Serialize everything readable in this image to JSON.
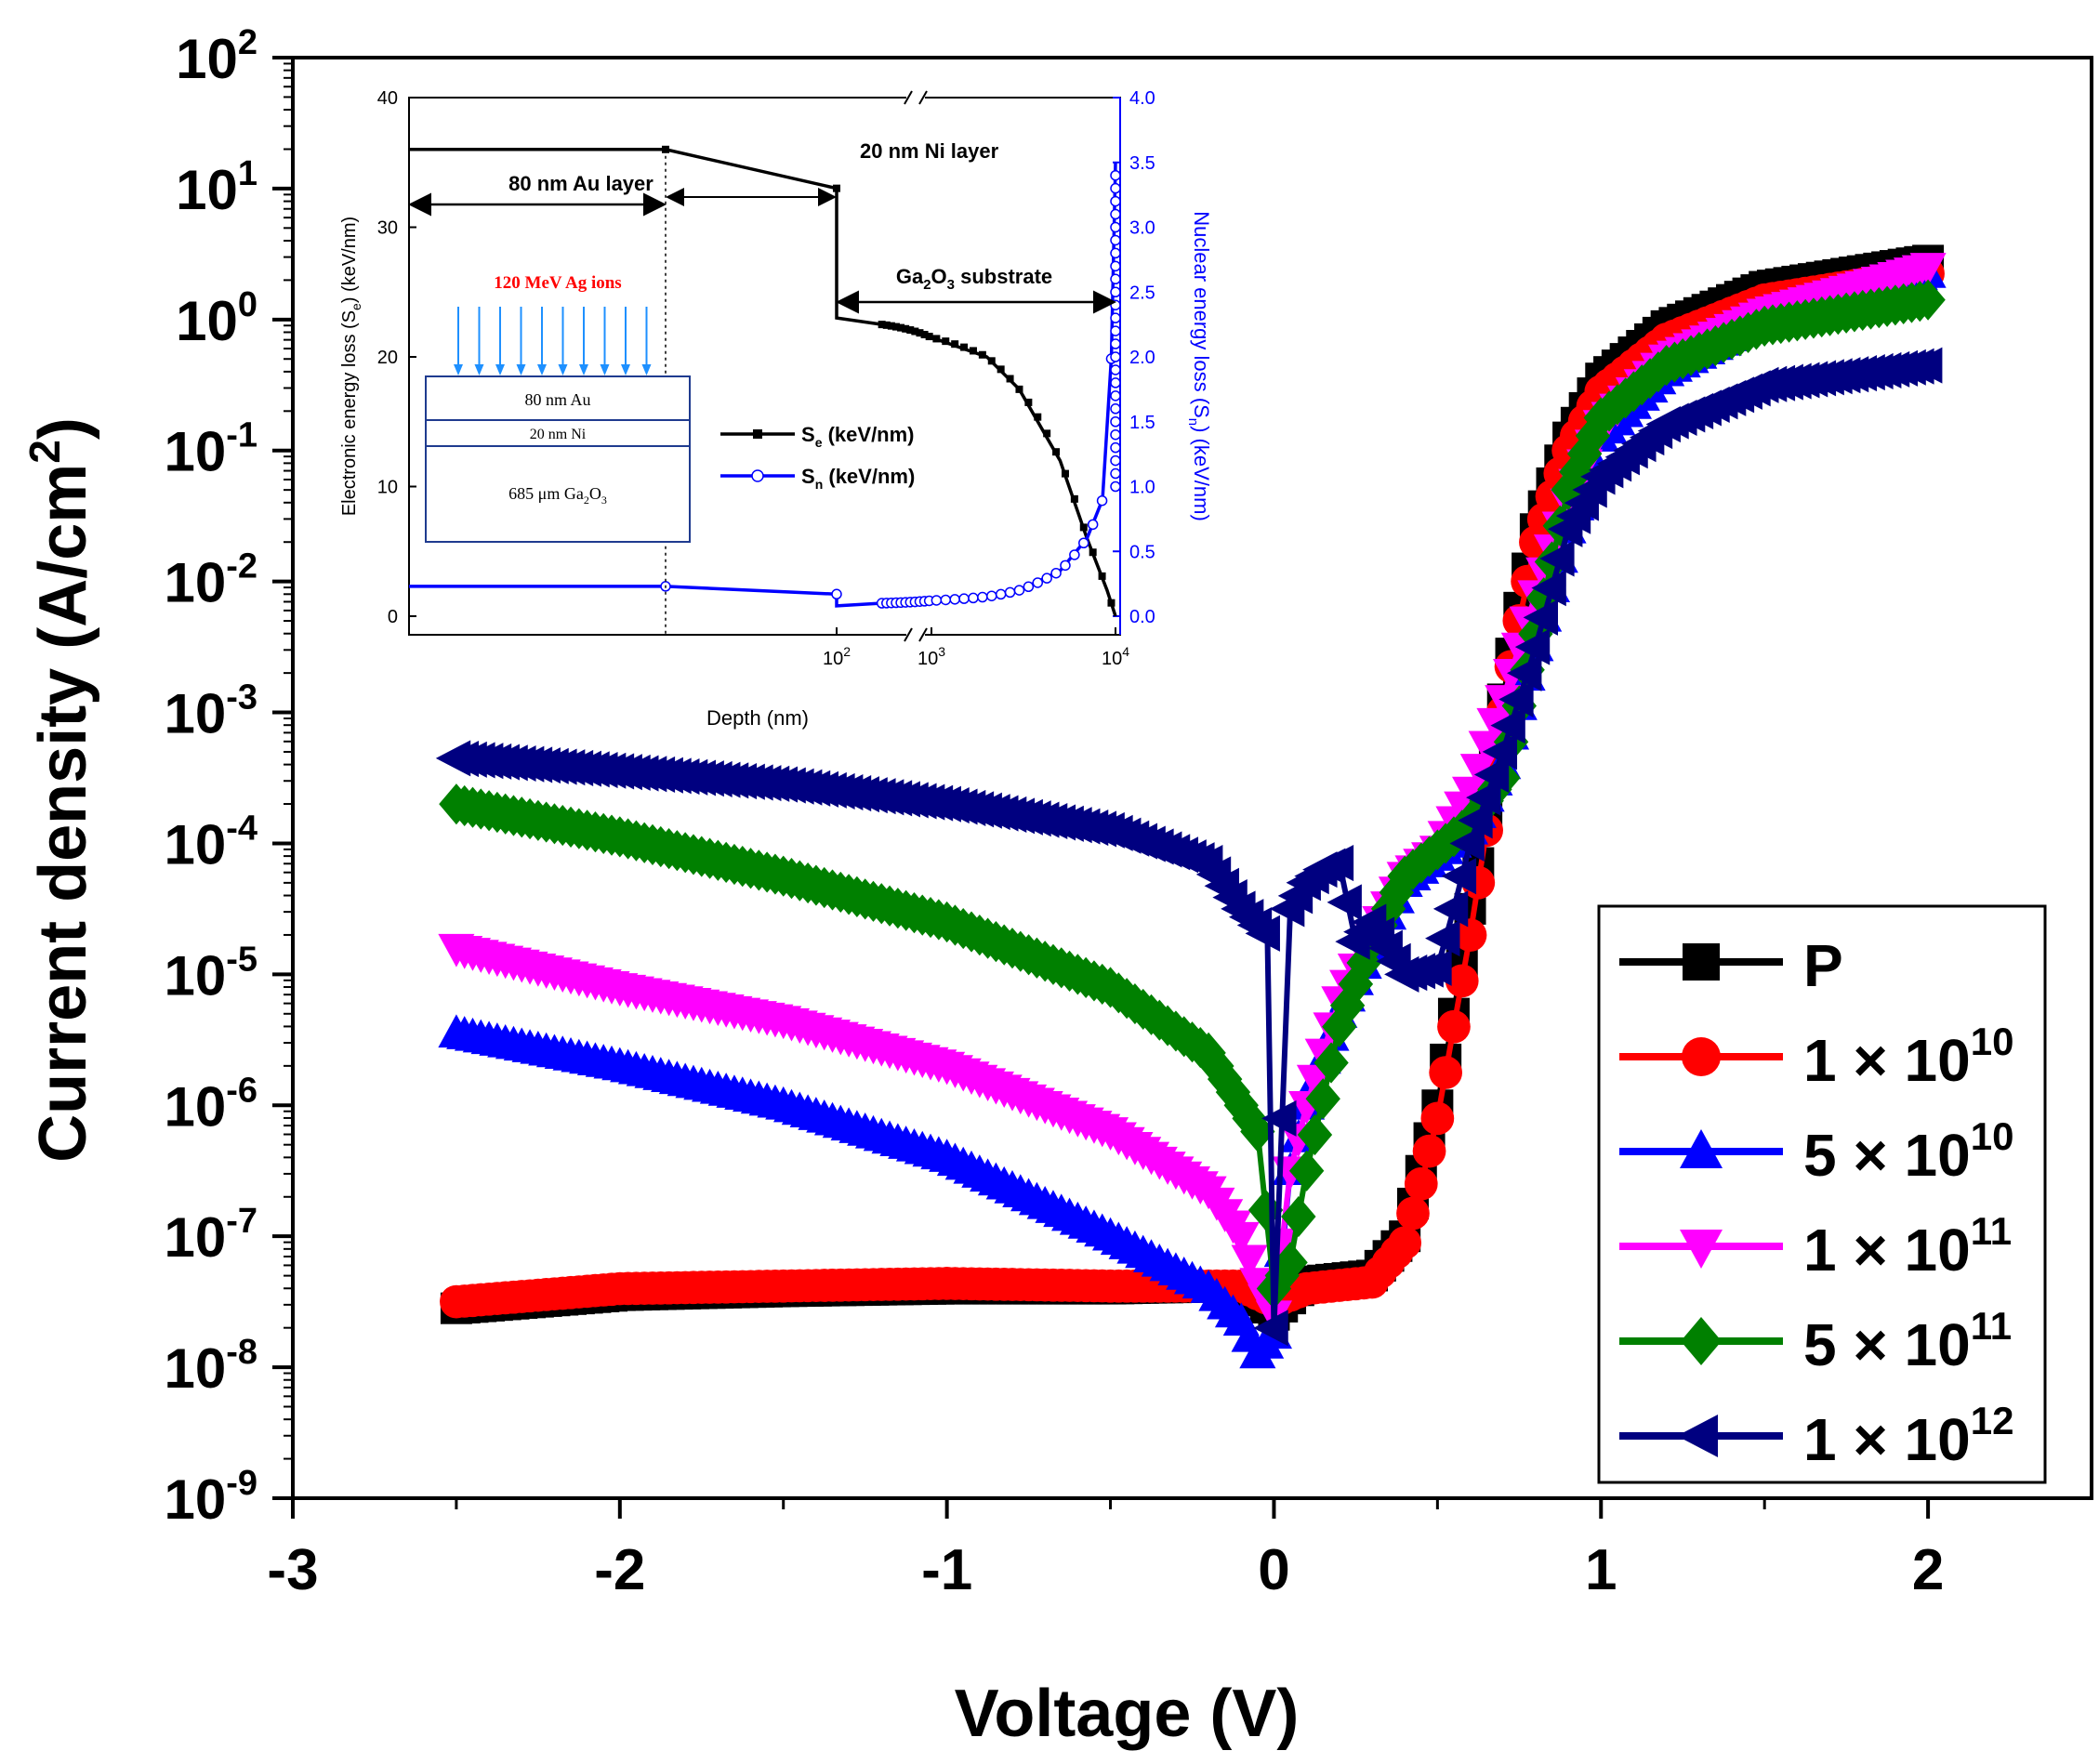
{
  "chart_data": [
    {
      "type": "line",
      "title": "",
      "xlabel": "Voltage (V)",
      "ylabel_main": "Current density (A/cm",
      "ylabel_sup": "2",
      "ylabel_end": ")",
      "yscale": "log",
      "xlim": [
        -3,
        2.5
      ],
      "ylim_exponents": [
        -9,
        2
      ],
      "x_ticks": [
        "-3",
        "-2",
        "-1",
        "0",
        "1",
        "2"
      ],
      "x_tick_values": [
        -3,
        -2,
        -1,
        0,
        1,
        2
      ],
      "y_tick_exponents": [
        "-9",
        "-8",
        "-7",
        "-6",
        "-5",
        "-4",
        "-3",
        "-2",
        "-1",
        "0",
        "1",
        "2"
      ],
      "y_tick_base": "10",
      "series": [
        {
          "name": "P",
          "name_base": "P",
          "name_exp": "",
          "color": "#000000",
          "marker": "square",
          "x": [
            -2.5,
            -2.0,
            -1.5,
            -1.0,
            -0.5,
            -0.1,
            0.0,
            0.1,
            0.3,
            0.4,
            0.45,
            0.5,
            0.55,
            0.6,
            0.65,
            0.7,
            0.75,
            0.8,
            0.9,
            1.0,
            1.2,
            1.5,
            2.0
          ],
          "logy": [
            -7.55,
            -7.45,
            -7.42,
            -7.4,
            -7.4,
            -7.38,
            -7.6,
            -7.35,
            -7.3,
            -7.0,
            -6.5,
            -6.0,
            -5.3,
            -4.5,
            -3.8,
            -2.9,
            -2.2,
            -1.6,
            -0.9,
            -0.45,
            -0.05,
            0.25,
            0.45
          ]
        },
        {
          "name": "1 × 10^10",
          "name_base": "1 × 10",
          "name_exp": "10",
          "color": "#ff0000",
          "marker": "circle",
          "x": [
            -2.5,
            -2.0,
            -1.5,
            -1.0,
            -0.5,
            -0.1,
            0.0,
            0.1,
            0.3,
            0.4,
            0.45,
            0.5,
            0.55,
            0.6,
            0.65,
            0.7,
            0.75,
            0.8,
            0.9,
            1.0,
            1.2,
            1.5,
            2.0
          ],
          "logy": [
            -7.5,
            -7.4,
            -7.38,
            -7.36,
            -7.38,
            -7.38,
            -7.5,
            -7.4,
            -7.35,
            -7.05,
            -6.6,
            -6.1,
            -5.4,
            -4.7,
            -3.9,
            -3.0,
            -2.3,
            -1.7,
            -1.0,
            -0.55,
            -0.15,
            0.15,
            0.35
          ]
        },
        {
          "name": "5 × 10^10",
          "name_base": "5 × 10",
          "name_exp": "10",
          "color": "#0000ff",
          "marker": "triangle-up",
          "x": [
            -2.5,
            -2.0,
            -1.5,
            -1.0,
            -0.5,
            -0.2,
            -0.1,
            -0.05,
            0.0,
            0.05,
            0.1,
            0.2,
            0.3,
            0.4,
            0.5,
            0.6,
            0.7,
            0.8,
            0.9,
            1.0,
            1.2,
            1.5,
            2.0
          ],
          "logy": [
            -5.45,
            -5.7,
            -6.0,
            -6.4,
            -7.0,
            -7.4,
            -7.65,
            -7.9,
            -7.75,
            -6.5,
            -6.0,
            -5.3,
            -4.8,
            -4.3,
            -4.1,
            -3.9,
            -3.4,
            -2.5,
            -1.6,
            -0.9,
            -0.4,
            0.0,
            0.35
          ]
        },
        {
          "name": "1 × 10^11",
          "name_base": "1 × 10",
          "name_exp": "11",
          "color": "#ff00ff",
          "marker": "triangle-down",
          "x": [
            -2.5,
            -2.0,
            -1.5,
            -1.0,
            -0.5,
            -0.2,
            -0.1,
            -0.05,
            0.0,
            0.05,
            0.1,
            0.2,
            0.3,
            0.4,
            0.5,
            0.6,
            0.7,
            0.75,
            0.8,
            0.9,
            1.0,
            1.2,
            1.5,
            2.0
          ],
          "logy": [
            -4.8,
            -5.1,
            -5.35,
            -5.7,
            -6.2,
            -6.65,
            -7.0,
            -7.35,
            -7.6,
            -6.5,
            -6.0,
            -5.2,
            -4.7,
            -4.25,
            -4.05,
            -3.6,
            -2.9,
            -2.5,
            -2.1,
            -1.4,
            -0.8,
            -0.3,
            0.05,
            0.4
          ]
        },
        {
          "name": "5 × 10^11",
          "name_base": "5 × 10",
          "name_exp": "11",
          "color": "#008000",
          "marker": "diamond",
          "x": [
            -2.5,
            -2.0,
            -1.5,
            -1.0,
            -0.5,
            -0.2,
            -0.05,
            0.0,
            0.05,
            0.1,
            0.2,
            0.3,
            0.4,
            0.5,
            0.6,
            0.7,
            0.8,
            0.9,
            1.0,
            1.2,
            1.5,
            2.0
          ],
          "logy": [
            -3.7,
            -3.95,
            -4.25,
            -4.6,
            -5.1,
            -5.6,
            -6.2,
            -7.4,
            -7.2,
            -6.5,
            -5.4,
            -4.75,
            -4.25,
            -4.05,
            -3.85,
            -3.5,
            -2.4,
            -1.3,
            -0.75,
            -0.35,
            -0.05,
            0.15
          ]
        },
        {
          "name": "1 × 10^12",
          "name_base": "1 × 10",
          "name_exp": "12",
          "color": "#000080",
          "marker": "triangle-left",
          "x": [
            -2.5,
            -2.0,
            -1.5,
            -1.0,
            -0.5,
            -0.2,
            -0.1,
            -0.02,
            0.0,
            0.05,
            0.1,
            0.15,
            0.2,
            0.25,
            0.3,
            0.4,
            0.5,
            0.55,
            0.6,
            0.7,
            0.8,
            0.9,
            1.0,
            1.2,
            1.5,
            2.0
          ],
          "logy": [
            -3.35,
            -3.45,
            -3.55,
            -3.7,
            -3.9,
            -4.15,
            -4.5,
            -4.7,
            -7.7,
            -4.5,
            -4.3,
            -4.2,
            -4.15,
            -4.75,
            -4.6,
            -5.0,
            -4.95,
            -4.5,
            -4.0,
            -3.3,
            -2.5,
            -1.6,
            -1.2,
            -0.8,
            -0.5,
            -0.35
          ]
        }
      ],
      "legend": "bottom-right"
    },
    {
      "type": "line",
      "inset": true,
      "xlabel": "Depth (nm)",
      "ylabel_left": "Electronic energy loss (S",
      "ylabel_left_sub": "e",
      "ylabel_left_end": ") (keV/nm)",
      "ylabel_right": "Nuclear energy loss (S",
      "ylabel_right_sub": "n",
      "ylabel_right_end": ") (keV/nm)",
      "y_left_ticks": [
        "0",
        "10",
        "20",
        "30",
        "40"
      ],
      "y_left_values": [
        0,
        10,
        20,
        30,
        40
      ],
      "y_right_ticks": [
        "0.0",
        "0.5",
        "1.0",
        "1.5",
        "2.0",
        "2.5",
        "3.0",
        "3.5",
        "4.0"
      ],
      "y_right_values": [
        0.0,
        0.5,
        1.0,
        1.5,
        2.0,
        2.5,
        3.0,
        3.5,
        4.0
      ],
      "x_tick_base": "10",
      "x_tick_exponents": [
        "2",
        "3",
        "4"
      ],
      "ylim_left": [
        0,
        40
      ],
      "ylim_right": [
        0,
        4.0
      ],
      "series": [
        {
          "name": "S_e (keV/nm)",
          "legend_base": "S",
          "legend_sub": "e",
          "legend_end": " (keV/nm)",
          "color": "#000000",
          "marker": "square",
          "x_nm": [
            0,
            60,
            100,
            100,
            300,
            1000,
            2000,
            3000,
            5000,
            7000,
            9000,
            10000
          ],
          "y": [
            36,
            36,
            33,
            23,
            22.5,
            21.5,
            20,
            17.5,
            12,
            6,
            2,
            0
          ]
        },
        {
          "name": "S_n (keV/nm)",
          "legend_base": "S",
          "legend_sub": "n",
          "legend_end": " (keV/nm)",
          "color": "#0000ff",
          "marker": "circle-open",
          "x_nm": [
            0,
            60,
            100,
            100,
            300,
            1000,
            2000,
            3000,
            5000,
            7000,
            8500,
            9500,
            10000
          ],
          "y": [
            0.23,
            0.23,
            0.17,
            0.08,
            0.1,
            0.12,
            0.15,
            0.2,
            0.35,
            0.6,
            0.9,
            2.0,
            3.5
          ]
        }
      ],
      "annotations": {
        "ni_layer": "20 nm Ni layer",
        "au_layer": "80 nm Au layer",
        "substrate_base": "Ga",
        "substrate_sub1": "2",
        "substrate_mid": "O",
        "substrate_sub2": "3",
        "substrate_end": " substrate"
      },
      "schematic": {
        "ions_label": "120 MeV Ag ions",
        "au": "80 nm Au",
        "ni": "20 nm Ni",
        "ga_prefix": "685 μm Ga",
        "ga_sub1": "2",
        "ga_mid": "O",
        "ga_sub2": "3",
        "ion_color": "#ff0000",
        "arrow_color": "#1e90ff"
      }
    }
  ]
}
